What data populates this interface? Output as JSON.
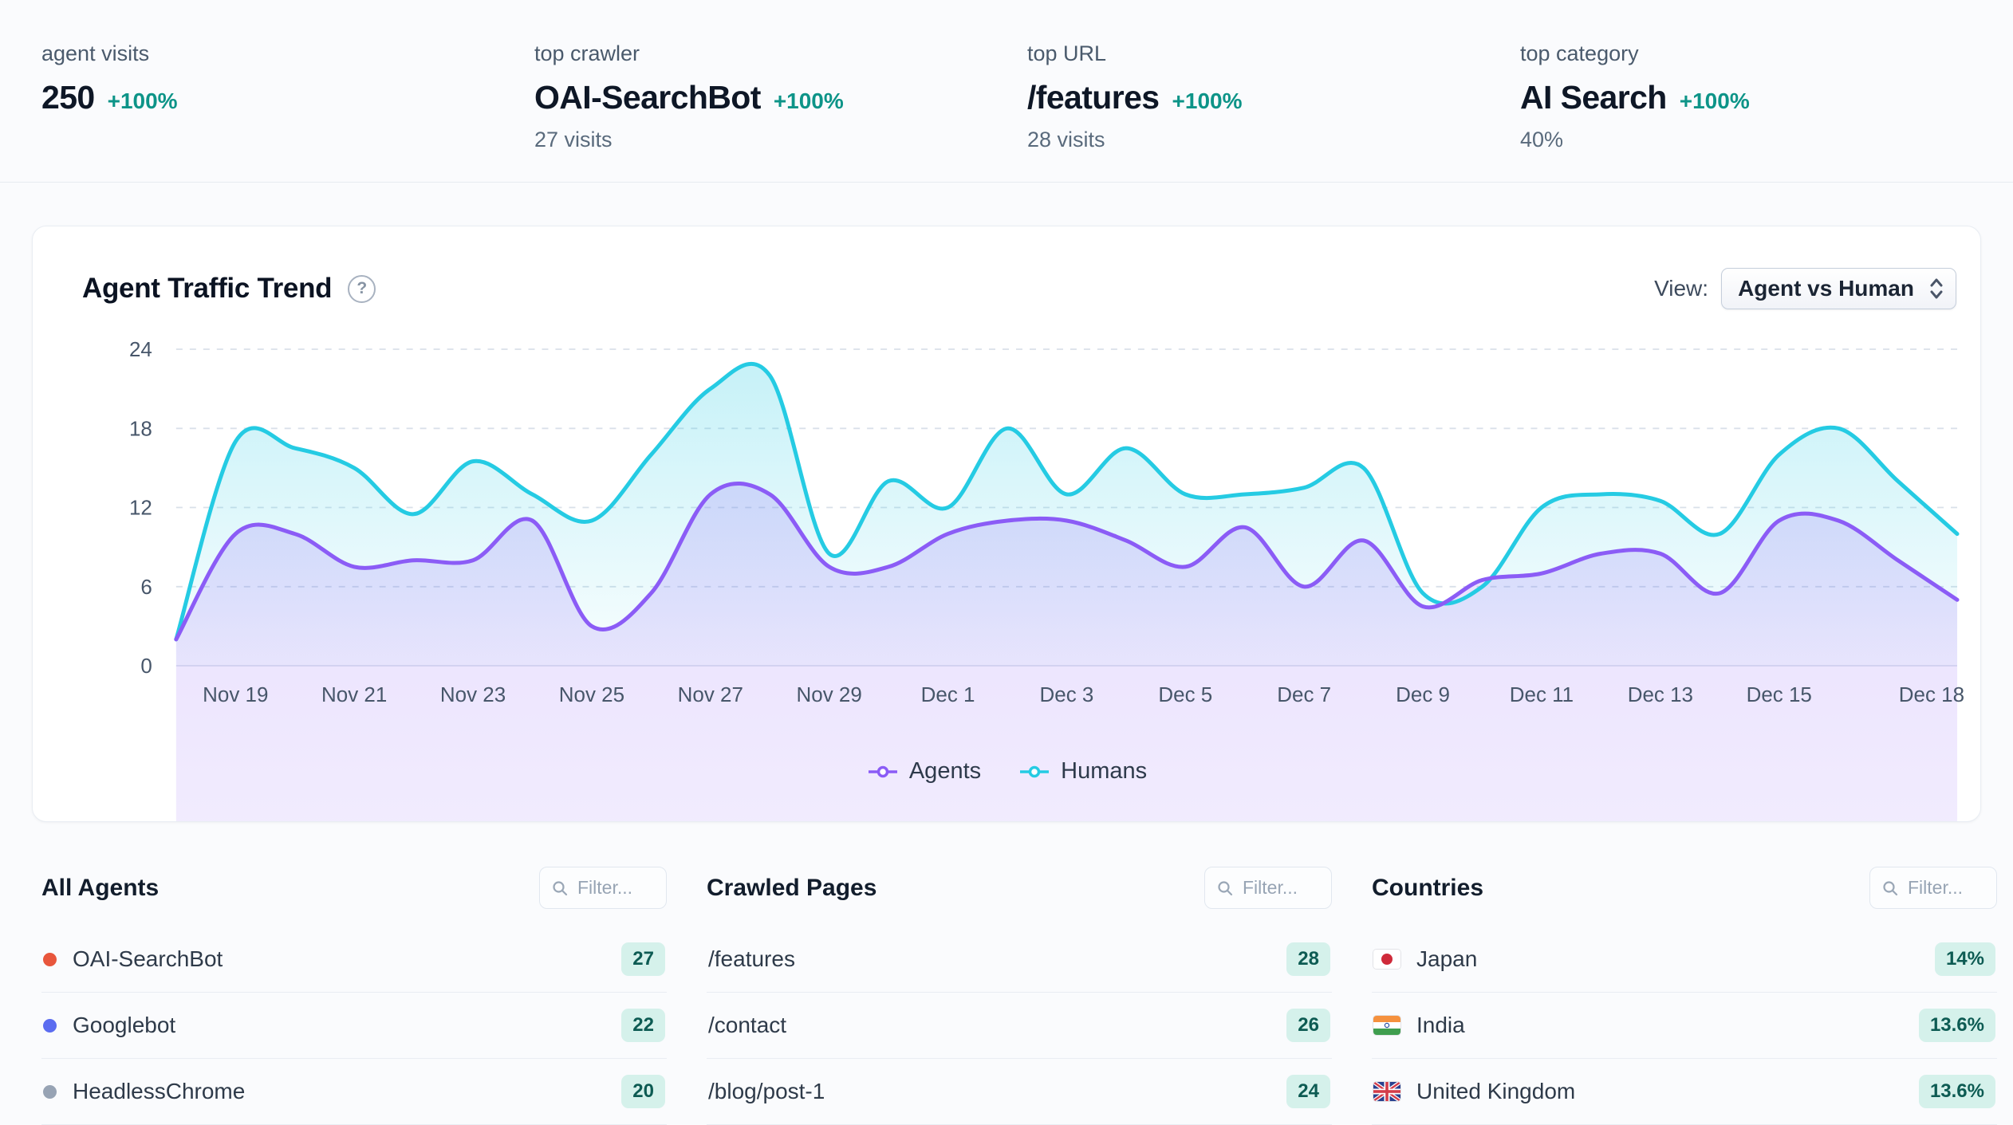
{
  "stats": [
    {
      "label": "agent visits",
      "value": "250",
      "delta": "+100%",
      "sub": ""
    },
    {
      "label": "top crawler",
      "value": "OAI-SearchBot",
      "delta": "+100%",
      "sub": "27 visits"
    },
    {
      "label": "top URL",
      "value": "/features",
      "delta": "+100%",
      "sub": "28 visits"
    },
    {
      "label": "top category",
      "value": "AI Search",
      "delta": "+100%",
      "sub": "40%"
    }
  ],
  "trend_card": {
    "title": "Agent Traffic Trend",
    "help_icon": "question-mark-circle-icon",
    "view_label": "View:",
    "view_selected": "Agent vs Human",
    "legend": [
      {
        "name": "Agents",
        "color": "#8b5cf6"
      },
      {
        "name": "Humans",
        "color": "#25cbe3"
      }
    ]
  },
  "chart_data": {
    "type": "area",
    "title": "Agent Traffic Trend",
    "ylim": [
      0,
      24
    ],
    "y_ticks": [
      0,
      6,
      12,
      18,
      24
    ],
    "grid": "dashed-horizontal",
    "legend_position": "bottom",
    "x_ticks": [
      {
        "index": 1,
        "label": "Nov 19"
      },
      {
        "index": 3,
        "label": "Nov 21"
      },
      {
        "index": 5,
        "label": "Nov 23"
      },
      {
        "index": 7,
        "label": "Nov 25"
      },
      {
        "index": 9,
        "label": "Nov 27"
      },
      {
        "index": 11,
        "label": "Nov 29"
      },
      {
        "index": 13,
        "label": "Dec 1"
      },
      {
        "index": 15,
        "label": "Dec 3"
      },
      {
        "index": 17,
        "label": "Dec 5"
      },
      {
        "index": 19,
        "label": "Dec 7"
      },
      {
        "index": 21,
        "label": "Dec 9"
      },
      {
        "index": 23,
        "label": "Dec 11"
      },
      {
        "index": 25,
        "label": "Dec 13"
      },
      {
        "index": 27,
        "label": "Dec 15"
      },
      {
        "index": 30,
        "label": "Dec 18"
      }
    ],
    "series": [
      {
        "name": "Agents",
        "color": "#8b5cf6",
        "values": [
          2,
          10,
          10,
          7.5,
          8,
          8,
          11,
          3,
          5.5,
          13,
          13,
          7.5,
          7.5,
          10,
          11,
          11,
          9.5,
          7.5,
          10.5,
          6,
          9.5,
          4.5,
          6.5,
          7,
          8.5,
          8.5,
          5.5,
          11,
          11,
          8,
          5
        ]
      },
      {
        "name": "Humans",
        "color": "#25cbe3",
        "values": [
          2,
          17,
          16.5,
          15,
          11.5,
          15.5,
          13,
          11,
          16,
          21,
          22,
          8.5,
          14,
          12,
          18,
          13,
          16.5,
          13,
          13,
          13.5,
          15,
          5.5,
          6,
          12,
          13,
          12.5,
          10,
          16,
          18,
          14,
          10
        ]
      }
    ]
  },
  "lists": [
    {
      "title": "All Agents",
      "filter_placeholder": "Filter...",
      "items": [
        {
          "name": "OAI-SearchBot",
          "dot_color": "#e8563c",
          "value": "27"
        },
        {
          "name": "Googlebot",
          "dot_color": "#5b6cf0",
          "value": "22"
        },
        {
          "name": "HeadlessChrome",
          "dot_color": "#97a3b4",
          "value": "20"
        }
      ]
    },
    {
      "title": "Crawled Pages",
      "filter_placeholder": "Filter...",
      "items": [
        {
          "name": "/features",
          "value": "28"
        },
        {
          "name": "/contact",
          "value": "26"
        },
        {
          "name": "/blog/post-1",
          "value": "24"
        }
      ]
    },
    {
      "title": "Countries",
      "filter_placeholder": "Filter...",
      "items": [
        {
          "name": "Japan",
          "flag_icon": "flag-japan",
          "value": "14%"
        },
        {
          "name": "India",
          "flag_icon": "flag-india",
          "value": "13.6%"
        },
        {
          "name": "United Kingdom",
          "flag_icon": "flag-uk",
          "value": "13.6%"
        }
      ]
    }
  ],
  "icons": {
    "filter": "search-icon",
    "help": "question-mark-circle-icon",
    "select": "updown-chevrons-icon"
  }
}
